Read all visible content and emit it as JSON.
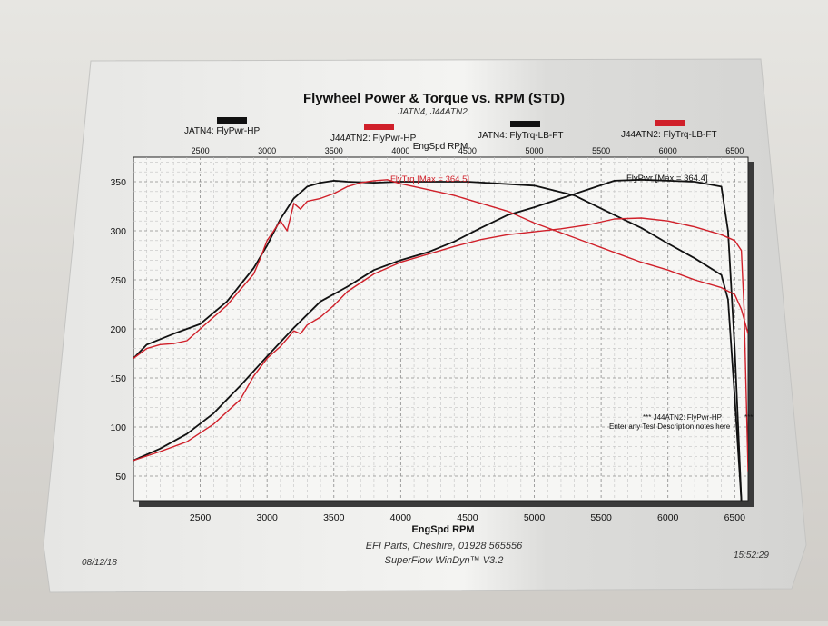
{
  "header": {
    "title": "Flywheel Power & Torque vs. RPM (STD)",
    "subtitle": "JATN4, J44ATN2,"
  },
  "legend": [
    {
      "label": "JATN4: FlyPwr-HP",
      "color": "#111111"
    },
    {
      "label": "J44ATN2: FlyPwr-HP",
      "color": "#d0202a"
    },
    {
      "label": "JATN4: FlyTrq-LB-FT",
      "color": "#111111"
    },
    {
      "label": "J44ATN2: FlyTrq-LB-FT",
      "color": "#d0202a"
    }
  ],
  "annotations": {
    "torque_max": "FlyTrq [Max = 364.5]",
    "power_max": "FlyPwr [Max = 364.4]",
    "note_line1": "*** J44ATN2: FlyPwr-HP",
    "note_line2": "Enter any Test Description notes here",
    "note_stars": "***"
  },
  "footer": {
    "date": "08/12/18",
    "company": "EFI Parts, Cheshire, 01928 565556",
    "software": "SuperFlow WinDyn™ V3.2",
    "time": "15:52:29"
  },
  "chart_data": {
    "type": "line",
    "title": "Flywheel Power & Torque vs. RPM (STD)",
    "xlabel": "EngSpd RPM",
    "x_top_label": "EngSpd RPM",
    "xlim": [
      2000,
      6600
    ],
    "ylim": [
      25,
      375
    ],
    "grid": true,
    "x_ticks_bottom": [
      2500,
      3000,
      3500,
      4000,
      4500,
      5000,
      5500,
      6000,
      6500
    ],
    "x_ticks_top": [
      2500,
      3000,
      3500,
      4000,
      4500,
      5000,
      5500,
      6000,
      6500
    ],
    "y_ticks": [
      50,
      100,
      150,
      200,
      250,
      300,
      350
    ],
    "series": [
      {
        "name": "JATN4: FlyTrq-LB-FT",
        "color": "#111111",
        "x": [
          2000,
          2100,
          2300,
          2500,
          2700,
          2900,
          3000,
          3100,
          3200,
          3300,
          3400,
          3500,
          3600,
          3800,
          4000,
          4500,
          5000,
          5300,
          5600,
          5800,
          6000,
          6200,
          6400,
          6450,
          6500,
          6550
        ],
        "y": [
          170,
          184,
          195,
          205,
          228,
          262,
          285,
          312,
          333,
          345,
          349,
          351,
          350,
          349,
          350,
          350,
          346,
          336,
          316,
          303,
          287,
          272,
          255,
          230,
          130,
          25
        ]
      },
      {
        "name": "JATN4: FlyPwr-HP",
        "color": "#111111",
        "x": [
          2000,
          2200,
          2400,
          2600,
          2800,
          3000,
          3200,
          3400,
          3600,
          3800,
          4000,
          4200,
          4400,
          4600,
          4800,
          5000,
          5200,
          5400,
          5600,
          5800,
          6000,
          6200,
          6400,
          6450,
          6500,
          6550
        ],
        "y": [
          66,
          78,
          93,
          114,
          142,
          172,
          201,
          228,
          243,
          260,
          270,
          278,
          289,
          303,
          316,
          324,
          333,
          342,
          351,
          352,
          351,
          350,
          345,
          300,
          180,
          25
        ]
      },
      {
        "name": "J44ATN2: FlyTrq-LB-FT",
        "color": "#d0202a",
        "x": [
          2000,
          2100,
          2200,
          2300,
          2400,
          2500,
          2600,
          2650,
          2700,
          2800,
          2900,
          2950,
          3000,
          3100,
          3150,
          3200,
          3250,
          3300,
          3400,
          3500,
          3600,
          3700,
          3800,
          3900,
          4000,
          4200,
          4400,
          4600,
          4800,
          5000,
          5200,
          5400,
          5600,
          5800,
          6000,
          6200,
          6400,
          6500,
          6550,
          6600
        ],
        "y": [
          170,
          180,
          184,
          185,
          188,
          200,
          212,
          218,
          224,
          240,
          256,
          272,
          290,
          310,
          300,
          328,
          322,
          330,
          333,
          338,
          345,
          349,
          351,
          352,
          348,
          342,
          336,
          328,
          320,
          308,
          298,
          288,
          278,
          268,
          260,
          250,
          242,
          235,
          220,
          195
        ]
      },
      {
        "name": "J44ATN2: FlyPwr-HP",
        "color": "#d0202a",
        "x": [
          2000,
          2200,
          2400,
          2600,
          2800,
          2900,
          3000,
          3100,
          3200,
          3250,
          3300,
          3400,
          3500,
          3600,
          3800,
          4000,
          4200,
          4400,
          4600,
          4800,
          5000,
          5200,
          5400,
          5600,
          5800,
          6000,
          6200,
          6400,
          6500,
          6550,
          6570,
          6600
        ],
        "y": [
          66,
          75,
          85,
          103,
          128,
          152,
          170,
          182,
          198,
          195,
          204,
          212,
          224,
          238,
          256,
          268,
          276,
          284,
          291,
          296,
          299,
          302,
          306,
          312,
          313,
          310,
          304,
          296,
          290,
          280,
          220,
          55
        ]
      }
    ]
  }
}
